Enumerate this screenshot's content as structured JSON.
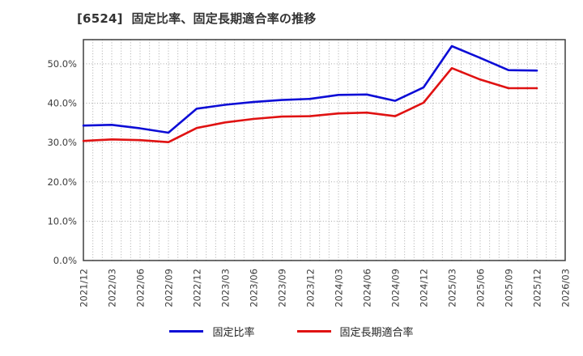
{
  "title": "[6524]  固定比率、固定長期適合率の推移",
  "legend": [
    {
      "label": "固定比率",
      "color": "#0d0dd6"
    },
    {
      "label": "固定長期適合率",
      "color": "#e01212"
    }
  ],
  "axes": {
    "y_tick_labels": [
      "0.0%",
      "10.0%",
      "20.0%",
      "30.0%",
      "40.0%",
      "50.0%"
    ],
    "x_tick_labels": [
      "2021/12",
      "2022/03",
      "2022/06",
      "2022/09",
      "2022/12",
      "2023/03",
      "2023/06",
      "2023/09",
      "2023/12",
      "2024/03",
      "2024/06",
      "2024/09",
      "2024/12",
      "2025/03",
      "2025/06",
      "2025/09",
      "2025/12",
      "2026/03"
    ]
  },
  "chart_data": {
    "type": "line",
    "title": "[6524] 固定比率、固定長期適合率の推移",
    "categories": [
      "2021/12",
      "2022/03",
      "2022/06",
      "2022/09",
      "2022/12",
      "2023/03",
      "2023/06",
      "2023/09",
      "2023/12",
      "2024/03",
      "2024/06",
      "2024/09",
      "2024/12",
      "2025/03",
      "2025/06",
      "2025/09",
      "2025/12"
    ],
    "series": [
      {
        "name": "固定比率",
        "color": "#0d0dd6",
        "values": [
          34.3,
          34.5,
          33.6,
          32.5,
          38.6,
          39.6,
          40.3,
          40.8,
          41.1,
          42.1,
          42.2,
          40.6,
          44.0,
          54.5,
          51.5,
          48.4,
          48.3
        ]
      },
      {
        "name": "固定長期適合率",
        "color": "#e01212",
        "values": [
          30.4,
          30.8,
          30.6,
          30.1,
          33.7,
          35.1,
          36.0,
          36.6,
          36.7,
          37.4,
          37.6,
          36.7,
          40.1,
          48.9,
          46.0,
          43.8,
          43.8
        ]
      }
    ],
    "ylabel": "",
    "xlabel": "",
    "ylim": [
      0,
      56
    ],
    "y_tick_step": 10,
    "unit": "%",
    "grid": true,
    "grid_style": "dotted",
    "minor_x_grid": "monthly",
    "legend_position": "bottom",
    "colors": {
      "grid": "#a8a8a8",
      "axis_border": "#3f3f3f",
      "tick_text": "#3c3c3c",
      "background": "#ffffff"
    }
  }
}
